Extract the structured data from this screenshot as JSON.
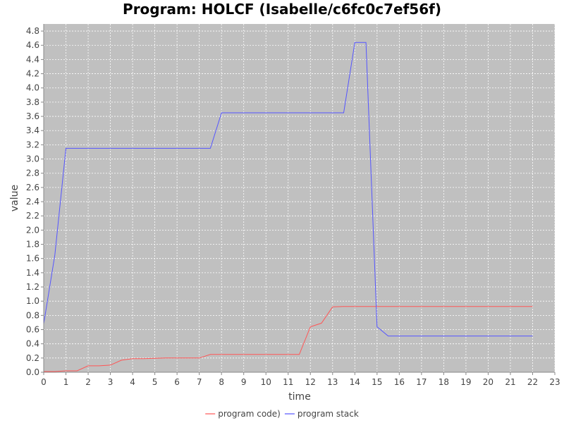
{
  "chart_data": {
    "type": "line",
    "title": "Program: HOLCF (Isabelle/c6fc0c7ef56f)",
    "xlabel": "time",
    "ylabel": "value",
    "xlim": [
      0,
      23
    ],
    "ylim": [
      0,
      4.9
    ],
    "x_ticks": [
      "0",
      "1",
      "2",
      "3",
      "4",
      "5",
      "6",
      "7",
      "8",
      "9",
      "10",
      "11",
      "12",
      "13",
      "14",
      "15",
      "16",
      "17",
      "18",
      "19",
      "20",
      "21",
      "22",
      "23"
    ],
    "y_ticks": [
      "0.0",
      "0.2",
      "0.4",
      "0.6",
      "0.8",
      "1.0",
      "1.2",
      "1.4",
      "1.6",
      "1.8",
      "2.0",
      "2.2",
      "2.4",
      "2.6",
      "2.8",
      "3.0",
      "3.2",
      "3.4",
      "3.6",
      "3.8",
      "4.0",
      "4.2",
      "4.4",
      "4.6",
      "4.8"
    ],
    "grid": true,
    "legend_position": "bottom",
    "plot_background": "#c0c0c0",
    "series": [
      {
        "name": "program code)",
        "color": "#ff5555",
        "x": [
          0,
          0.5,
          1,
          1.5,
          2,
          2.5,
          3,
          3.5,
          4,
          4.5,
          5,
          5.5,
          6,
          6.5,
          7,
          7.5,
          8,
          8.5,
          9,
          9.5,
          10,
          10.5,
          11,
          11.5,
          12,
          12.5,
          13,
          13.5,
          14,
          14.5,
          15,
          15.5,
          16,
          17,
          18,
          19,
          20,
          21,
          22
        ],
        "y": [
          0.01,
          0.01,
          0.02,
          0.02,
          0.09,
          0.09,
          0.1,
          0.17,
          0.19,
          0.19,
          0.195,
          0.2,
          0.2,
          0.2,
          0.2,
          0.25,
          0.25,
          0.25,
          0.25,
          0.25,
          0.25,
          0.25,
          0.25,
          0.25,
          0.64,
          0.69,
          0.92,
          0.925,
          0.925,
          0.925,
          0.925,
          0.925,
          0.925,
          0.925,
          0.925,
          0.925,
          0.925,
          0.925,
          0.925
        ]
      },
      {
        "name": "program stack",
        "color": "#5555ff",
        "x": [
          0,
          0.5,
          1,
          1.5,
          2,
          3,
          4,
          5,
          6,
          7,
          7.5,
          8,
          8.5,
          9,
          10,
          11,
          12,
          13,
          13.5,
          14,
          14.5,
          15,
          15.5,
          16,
          17,
          18,
          19,
          20,
          21,
          22
        ],
        "y": [
          0.68,
          1.65,
          3.15,
          3.15,
          3.15,
          3.15,
          3.15,
          3.15,
          3.15,
          3.15,
          3.15,
          3.65,
          3.65,
          3.65,
          3.65,
          3.65,
          3.65,
          3.65,
          3.65,
          4.64,
          4.64,
          0.64,
          0.51,
          0.51,
          0.51,
          0.51,
          0.51,
          0.51,
          0.51,
          0.51
        ]
      }
    ]
  }
}
